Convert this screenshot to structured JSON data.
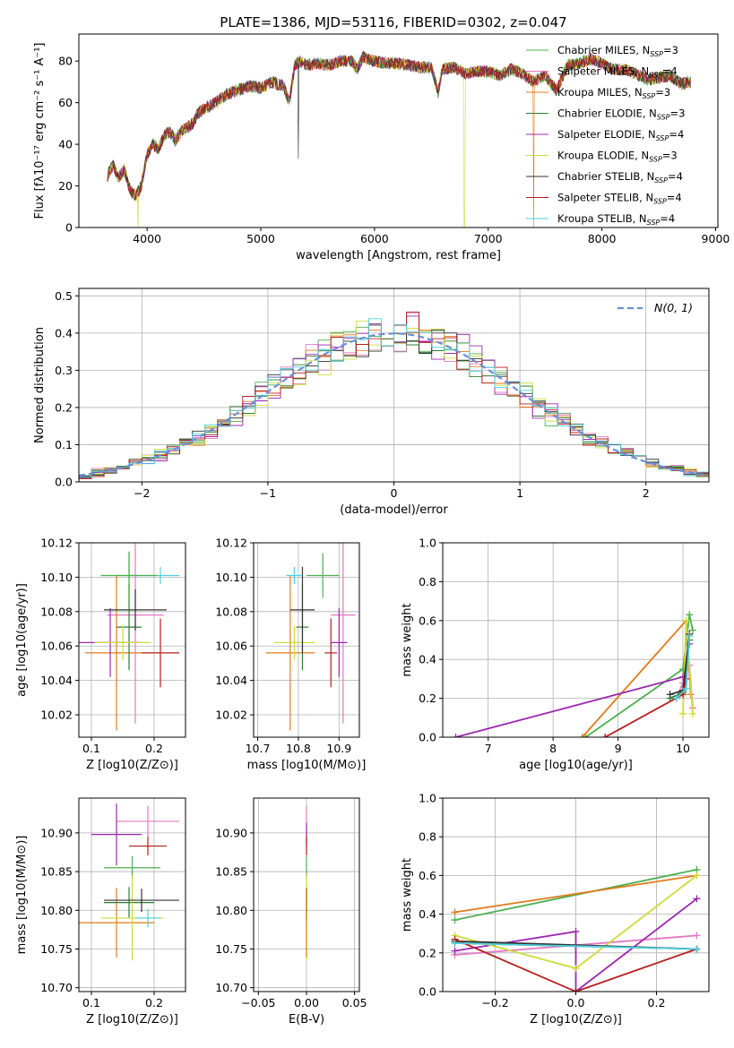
{
  "title": "PLATE=1386, MJD=53116, FIBERID=0302, z=0.047",
  "models": [
    {
      "name": "Chabrier MILES",
      "nssp": "3",
      "color": "#4caf50"
    },
    {
      "name": "Salpeter MILES",
      "nssp": "4",
      "color": "#e377c2"
    },
    {
      "name": "Kroupa MILES",
      "nssp": "3",
      "color": "#e07b1a"
    },
    {
      "name": "Chabrier ELODIE",
      "nssp": "3",
      "color": "#2e7d32"
    },
    {
      "name": "Salpeter ELODIE",
      "nssp": "4",
      "color": "#9c27b0"
    },
    {
      "name": "Kroupa ELODIE",
      "nssp": "3",
      "color": "#cddc39"
    },
    {
      "name": "Chabrier STELIB",
      "nssp": "4",
      "color": "#333333"
    },
    {
      "name": "Salpeter STELIB",
      "nssp": "4",
      "color": "#b71c1c"
    },
    {
      "name": "Kroupa STELIB",
      "nssp": "4",
      "color": "#4dd0e1"
    }
  ],
  "chart_data": [
    {
      "id": "spectrum",
      "type": "line",
      "xlabel": "wavelength [Angstrom, rest frame]",
      "ylabel": "Flux [fλ10⁻¹⁷ erg cm⁻² s⁻¹ A⁻¹]",
      "xlim": [
        3400,
        9020
      ],
      "ylim": [
        0,
        93
      ],
      "xticks": [
        4000,
        5000,
        6000,
        7000,
        8000,
        9000
      ],
      "yticks": [
        0,
        20,
        40,
        60,
        80
      ],
      "legend_position": "right",
      "x": [
        3650,
        3700,
        3750,
        3800,
        3850,
        3900,
        3950,
        4000,
        4050,
        4100,
        4150,
        4200,
        4250,
        4300,
        4350,
        4400,
        4450,
        4500,
        4600,
        4700,
        4800,
        4900,
        5000,
        5100,
        5200,
        5250,
        5300,
        5350,
        5400,
        5500,
        5600,
        5700,
        5800,
        5850,
        5900,
        6000,
        6100,
        6200,
        6300,
        6400,
        6500,
        6560,
        6600,
        6700,
        6800,
        6900,
        7000,
        7100,
        7200,
        7300,
        7400,
        7500,
        7600,
        7700,
        7800,
        7900,
        8000,
        8100,
        8200,
        8300,
        8400,
        8500,
        8600,
        8700,
        8780
      ],
      "values": [
        25,
        30,
        24,
        28,
        18,
        15,
        20,
        35,
        40,
        38,
        44,
        46,
        42,
        46,
        48,
        50,
        55,
        57,
        60,
        64,
        66,
        68,
        67,
        70,
        68,
        60,
        78,
        80,
        78,
        79,
        78,
        80,
        80,
        76,
        82,
        80,
        79,
        79,
        78,
        77,
        77,
        65,
        76,
        77,
        74,
        75,
        75,
        73,
        76,
        74,
        70,
        73,
        66,
        78,
        79,
        81,
        79,
        76,
        76,
        74,
        71,
        72,
        73,
        69,
        70
      ]
    },
    {
      "id": "residuals",
      "type": "bar",
      "xlabel": "(data-model)/error",
      "ylabel": "Normed distribution",
      "xlim": [
        -2.5,
        2.5
      ],
      "ylim": [
        0,
        0.52
      ],
      "xticks": [
        -2,
        -1,
        0,
        1,
        2
      ],
      "yticks": [
        0.0,
        0.1,
        0.2,
        0.3,
        0.4,
        0.5
      ],
      "legend_position": "top-right",
      "reference_curve": "N(0,1)",
      "reference_label": "N(0, 1)"
    },
    {
      "id": "age_vs_Z",
      "type": "scatter",
      "xlabel": "Z [log10(Z/Z⊙)]",
      "ylabel": "age  [log10(age/yr)]",
      "xlim": [
        0.08,
        0.25
      ],
      "ylim": [
        10.007,
        10.12
      ],
      "xticks": [
        0.1,
        0.2
      ],
      "yticks": [
        10.02,
        10.04,
        10.06,
        10.08,
        10.1,
        10.12
      ],
      "points": [
        {
          "model": 0,
          "x": 0.16,
          "y": 10.101,
          "xerr": 0.02,
          "yerr": 0.013
        },
        {
          "model": 1,
          "x": 0.17,
          "y": 10.078,
          "xerr": 0.045,
          "yerr": 0.063
        },
        {
          "model": 2,
          "x": 0.14,
          "y": 10.056,
          "xerr": 0.05,
          "yerr": 0.045
        },
        {
          "model": 3,
          "x": 0.16,
          "y": 10.071,
          "xerr": 0.02,
          "yerr": 0.025
        },
        {
          "model": 4,
          "x": 0.13,
          "y": 10.062,
          "xerr": 0.05,
          "yerr": 0.02
        },
        {
          "model": 5,
          "x": 0.15,
          "y": 10.062,
          "xerr": 0.045,
          "yerr": 0.01
        },
        {
          "model": 6,
          "x": 0.17,
          "y": 10.081,
          "xerr": 0.05,
          "yerr": 0.012
        },
        {
          "model": 7,
          "x": 0.21,
          "y": 10.056,
          "xerr": 0.03,
          "yerr": 0.02
        },
        {
          "model": 8,
          "x": 0.21,
          "y": 10.101,
          "xerr": 0.03,
          "yerr": 0.005
        },
        {
          "model": 0,
          "x": 0.16,
          "y": 10.101,
          "xerr": 0.045,
          "yerr": 0.014
        }
      ]
    },
    {
      "id": "age_vs_mass",
      "type": "scatter",
      "xlabel": "mass [log10(M/M⊙)]",
      "ylabel": "",
      "xlim": [
        10.69,
        10.95
      ],
      "ylim": [
        10.007,
        10.12
      ],
      "xticks": [
        10.7,
        10.8,
        10.9
      ],
      "yticks": [
        10.02,
        10.04,
        10.06,
        10.08,
        10.1,
        10.12
      ],
      "points": [
        {
          "model": 0,
          "x": 10.86,
          "y": 10.101,
          "xerr": 0.04,
          "yerr": 0.013
        },
        {
          "model": 1,
          "x": 10.91,
          "y": 10.078,
          "xerr": 0.03,
          "yerr": 0.063
        },
        {
          "model": 2,
          "x": 10.78,
          "y": 10.056,
          "xerr": 0.06,
          "yerr": 0.045
        },
        {
          "model": 3,
          "x": 10.81,
          "y": 10.071,
          "xerr": 0.015,
          "yerr": 0.025
        },
        {
          "model": 4,
          "x": 10.9,
          "y": 10.062,
          "xerr": 0.02,
          "yerr": 0.02
        },
        {
          "model": 5,
          "x": 10.79,
          "y": 10.062,
          "xerr": 0.05,
          "yerr": 0.01
        },
        {
          "model": 6,
          "x": 10.81,
          "y": 10.081,
          "xerr": 0.03,
          "yerr": 0.025
        },
        {
          "model": 7,
          "x": 10.88,
          "y": 10.056,
          "xerr": 0.015,
          "yerr": 0.02
        },
        {
          "model": 8,
          "x": 10.79,
          "y": 10.101,
          "xerr": 0.02,
          "yerr": 0.005
        }
      ]
    },
    {
      "id": "weight_vs_age",
      "type": "line",
      "xlabel": "age  [log10(age/yr)]",
      "ylabel": "mass weight",
      "xlim": [
        6.3,
        10.4
      ],
      "ylim": [
        0,
        1
      ],
      "xticks": [
        7,
        8,
        9,
        10
      ],
      "yticks": [
        0.0,
        0.2,
        0.4,
        0.6,
        0.8,
        1.0
      ],
      "series": [
        {
          "model": 0,
          "points": [
            [
              8.5,
              0.0
            ],
            [
              10.0,
              0.35
            ],
            [
              10.1,
              0.63
            ],
            [
              10.15,
              0.55
            ]
          ]
        },
        {
          "model": 1,
          "points": [
            [
              9.9,
              0.2
            ],
            [
              10.0,
              0.28
            ],
            [
              10.1,
              0.37
            ],
            [
              10.15,
              0.15
            ]
          ]
        },
        {
          "model": 2,
          "points": [
            [
              8.45,
              0.0
            ],
            [
              10.05,
              0.6
            ],
            [
              10.12,
              0.22
            ]
          ]
        },
        {
          "model": 3,
          "points": [
            [
              9.8,
              0.2
            ],
            [
              10.0,
              0.23
            ],
            [
              10.1,
              0.5
            ]
          ]
        },
        {
          "model": 4,
          "points": [
            [
              6.5,
              0.0
            ],
            [
              10.0,
              0.31
            ],
            [
              10.1,
              0.48
            ]
          ]
        },
        {
          "model": 5,
          "points": [
            [
              10.0,
              0.12
            ],
            [
              10.05,
              0.6
            ],
            [
              10.15,
              0.12
            ]
          ]
        },
        {
          "model": 6,
          "points": [
            [
              9.8,
              0.22
            ],
            [
              10.0,
              0.24
            ],
            [
              10.1,
              0.53
            ]
          ]
        },
        {
          "model": 7,
          "points": [
            [
              8.8,
              0.0
            ],
            [
              10.0,
              0.22
            ],
            [
              10.05,
              0.3
            ]
          ]
        },
        {
          "model": 8,
          "points": [
            [
              9.9,
              0.2
            ],
            [
              10.05,
              0.25
            ],
            [
              10.1,
              0.52
            ]
          ]
        }
      ]
    },
    {
      "id": "mass_vs_Z",
      "type": "scatter",
      "xlabel": "Z [log10(Z/Z⊙)]",
      "ylabel": "mass [log10(M/M⊙)]",
      "xlim": [
        0.08,
        0.25
      ],
      "ylim": [
        10.695,
        10.945
      ],
      "xticks": [
        0.1,
        0.2
      ],
      "yticks": [
        10.7,
        10.75,
        10.8,
        10.85,
        10.9
      ],
      "points": [
        {
          "model": 0,
          "x": 0.165,
          "y": 10.855,
          "xerr": 0.045,
          "yerr": 0.015
        },
        {
          "model": 1,
          "x": 0.19,
          "y": 10.915,
          "xerr": 0.05,
          "yerr": 0.02
        },
        {
          "model": 2,
          "x": 0.14,
          "y": 10.784,
          "xerr": 0.06,
          "yerr": 0.045
        },
        {
          "model": 3,
          "x": 0.16,
          "y": 10.81,
          "xerr": 0.04,
          "yerr": 0.02
        },
        {
          "model": 4,
          "x": 0.14,
          "y": 10.898,
          "xerr": 0.04,
          "yerr": 0.04
        },
        {
          "model": 5,
          "x": 0.165,
          "y": 10.79,
          "xerr": 0.05,
          "yerr": 0.055
        },
        {
          "model": 6,
          "x": 0.18,
          "y": 10.813,
          "xerr": 0.06,
          "yerr": 0.015
        },
        {
          "model": 7,
          "x": 0.19,
          "y": 10.883,
          "xerr": 0.03,
          "yerr": 0.012
        },
        {
          "model": 8,
          "x": 0.19,
          "y": 10.79,
          "xerr": 0.02,
          "yerr": 0.012
        }
      ]
    },
    {
      "id": "mass_vs_ebv",
      "type": "scatter",
      "xlabel": "E(B-V)",
      "ylabel": "",
      "xlim": [
        -0.055,
        0.055
      ],
      "ylim": [
        10.695,
        10.945
      ],
      "xticks": [
        -0.05,
        0.0,
        0.05
      ],
      "yticks": [
        10.7,
        10.75,
        10.8,
        10.85,
        10.9
      ],
      "points": [
        {
          "model": 1,
          "x": 0.0,
          "y": 10.915,
          "xerr": 0.0,
          "yerr": 0.02
        },
        {
          "model": 4,
          "x": 0.0,
          "y": 10.898,
          "xerr": 0.0,
          "yerr": 0.015
        },
        {
          "model": 7,
          "x": 0.0,
          "y": 10.883,
          "xerr": 0.0,
          "yerr": 0.012
        },
        {
          "model": 0,
          "x": 0.0,
          "y": 10.855,
          "xerr": 0.0,
          "yerr": 0.015
        },
        {
          "model": 6,
          "x": 0.0,
          "y": 10.813,
          "xerr": 0.0,
          "yerr": 0.015
        },
        {
          "model": 3,
          "x": 0.0,
          "y": 10.81,
          "xerr": 0.0,
          "yerr": 0.02
        },
        {
          "model": 8,
          "x": 0.0,
          "y": 10.79,
          "xerr": 0.0,
          "yerr": 0.012
        },
        {
          "model": 5,
          "x": 0.0,
          "y": 10.79,
          "xerr": 0.0,
          "yerr": 0.055
        },
        {
          "model": 2,
          "x": 0.0,
          "y": 10.784,
          "xerr": 0.0,
          "yerr": 0.045
        }
      ]
    },
    {
      "id": "weight_vs_Z",
      "type": "line",
      "xlabel": "Z [log10(Z/Z⊙)]",
      "ylabel": "mass weight",
      "xlim": [
        -0.33,
        0.33
      ],
      "ylim": [
        0,
        1
      ],
      "xticks": [
        -0.2,
        0.0,
        0.2
      ],
      "yticks": [
        0.0,
        0.2,
        0.4,
        0.6,
        0.8,
        1.0
      ],
      "series": [
        {
          "model": 0,
          "points": [
            [
              -0.3,
              0.37
            ],
            [
              0.3,
              0.63
            ]
          ]
        },
        {
          "model": 1,
          "points": [
            [
              -0.3,
              0.19
            ],
            [
              0.3,
              0.29
            ]
          ]
        },
        {
          "model": 2,
          "points": [
            [
              -0.3,
              0.41
            ],
            [
              0.3,
              0.6
            ]
          ]
        },
        {
          "model": 3,
          "points": [
            [
              -0.3,
              0.25
            ],
            [
              0.3,
              0.22
            ]
          ]
        },
        {
          "model": 4,
          "points": [
            [
              -0.3,
              0.21
            ],
            [
              0.0,
              0.31
            ],
            [
              0.0,
              0.0
            ],
            [
              0.3,
              0.48
            ]
          ]
        },
        {
          "model": 5,
          "points": [
            [
              -0.3,
              0.29
            ],
            [
              0.0,
              0.12
            ],
            [
              0.3,
              0.6
            ]
          ]
        },
        {
          "model": 6,
          "points": [
            [
              -0.3,
              0.26
            ],
            [
              0.3,
              0.22
            ]
          ]
        },
        {
          "model": 7,
          "points": [
            [
              -0.3,
              0.27
            ],
            [
              0.0,
              0.0
            ],
            [
              0.3,
              0.22
            ]
          ]
        },
        {
          "model": 8,
          "points": [
            [
              -0.3,
              0.25
            ],
            [
              0.3,
              0.22
            ]
          ]
        }
      ]
    }
  ]
}
